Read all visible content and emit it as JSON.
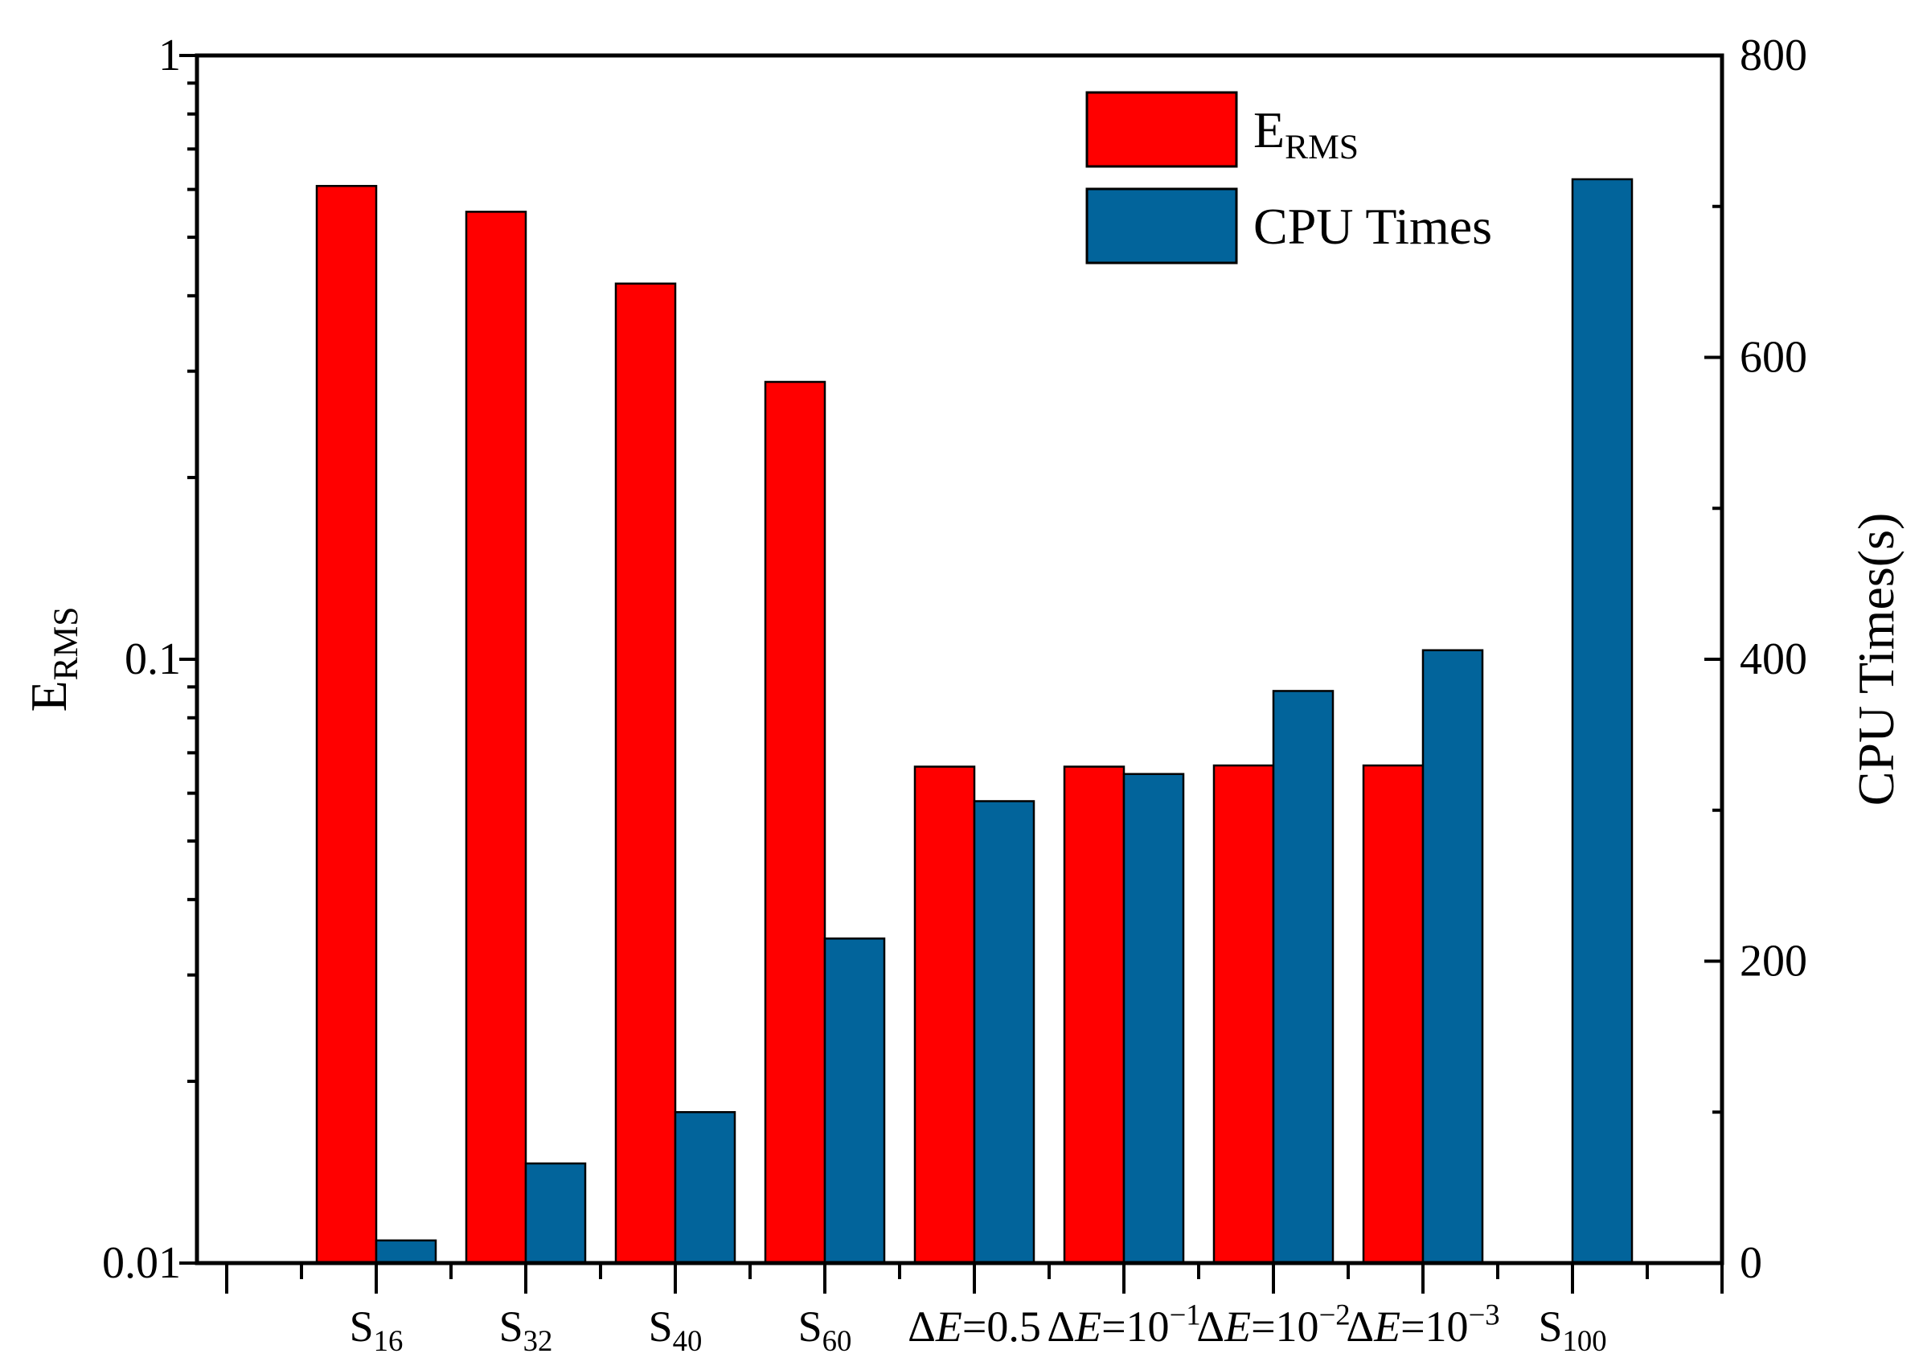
{
  "chart_data": {
    "type": "bar",
    "categories": [
      {
        "id": "S16",
        "parts": [
          {
            "t": "S"
          },
          {
            "t": "16",
            "sub": true
          }
        ]
      },
      {
        "id": "S32",
        "parts": [
          {
            "t": "S"
          },
          {
            "t": "32",
            "sub": true
          }
        ]
      },
      {
        "id": "S40",
        "parts": [
          {
            "t": "S"
          },
          {
            "t": "40",
            "sub": true
          }
        ]
      },
      {
        "id": "S60",
        "parts": [
          {
            "t": "S"
          },
          {
            "t": "60",
            "sub": true
          }
        ]
      },
      {
        "id": "dE0.5",
        "parts": [
          {
            "t": "Δ"
          },
          {
            "t": "E",
            "it": true
          },
          {
            "t": "=0.5"
          }
        ]
      },
      {
        "id": "dE1e-1",
        "parts": [
          {
            "t": "Δ"
          },
          {
            "t": "E",
            "it": true
          },
          {
            "t": "=10"
          },
          {
            "t": "−1",
            "sup": true
          }
        ]
      },
      {
        "id": "dE1e-2",
        "parts": [
          {
            "t": "Δ"
          },
          {
            "t": "E",
            "it": true
          },
          {
            "t": "=10"
          },
          {
            "t": "−2",
            "sup": true
          }
        ]
      },
      {
        "id": "dE1e-3",
        "parts": [
          {
            "t": "Δ"
          },
          {
            "t": "E",
            "it": true
          },
          {
            "t": "=10"
          },
          {
            "t": "−3",
            "sup": true
          }
        ]
      },
      {
        "id": "S100",
        "parts": [
          {
            "t": "S"
          },
          {
            "t": "100",
            "sub": true
          }
        ]
      }
    ],
    "series": [
      {
        "name": "ERMS",
        "legend_parts": [
          {
            "t": "E"
          },
          {
            "t": "RMS",
            "sub": true
          }
        ],
        "axis": "left",
        "color": "#ff0000",
        "values": [
          0.608,
          0.551,
          0.419,
          0.288,
          0.0664,
          0.0664,
          0.0667,
          0.0667,
          null
        ]
      },
      {
        "name": "CPU Times",
        "legend_parts": [
          {
            "t": "CPU Times"
          }
        ],
        "axis": "right",
        "color": "#02649b",
        "values": [
          15,
          66,
          100,
          215,
          306,
          324,
          379,
          406,
          718
        ]
      }
    ],
    "left_axis": {
      "title_parts": [
        {
          "t": "E"
        },
        {
          "t": "RMS",
          "sub": true
        }
      ],
      "scale": "log",
      "ylim": [
        0.01,
        1
      ],
      "ticks": [
        0.01,
        0.1,
        1
      ],
      "tick_labels": [
        "0.01",
        "0.1",
        "1"
      ]
    },
    "right_axis": {
      "title": "CPU Times(s)",
      "scale": "linear",
      "ylim": [
        0,
        800
      ],
      "ticks": [
        0,
        200,
        400,
        600,
        800
      ],
      "tick_labels": [
        "0",
        "200",
        "400",
        "600",
        "800"
      ],
      "minor_step": 100
    },
    "legend": "top-right",
    "grid": false
  }
}
